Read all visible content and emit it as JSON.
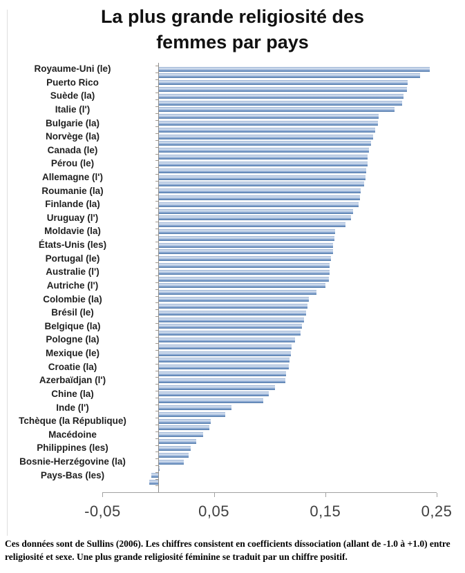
{
  "header": {
    "title": "La plus grande religiosité des femmes par pays",
    "title_lines": [
      "La plus grande religiosité des",
      "femmes par pays"
    ]
  },
  "footnote": {
    "text": "Ces données sont de Sullins (2006). Les chiffres consistent en coefficients díssociation (allant de -1.0 à +1.0) entre religiosité et sexe. Une plus grande religiosité féminine se traduit par un chiffre positif."
  },
  "chart_data": {
    "type": "bar",
    "orientation": "horizontal",
    "title": "La plus grande religiosité des femmes par pays",
    "xlabel": "",
    "ylabel": "",
    "xlim": [
      -0.05,
      0.25
    ],
    "x_tick_values": [
      -0.05,
      0.05,
      0.15,
      0.25
    ],
    "x_tick_labels": [
      "-0,05",
      "0,05",
      "0,15",
      "0,25"
    ],
    "grid": false,
    "legend": false,
    "bar_color": "#6d92c0",
    "label_interval": 2,
    "categories": [
      "Royaume-Uni (le)",
      "Puerto Rico",
      "Suède (la)",
      "Italie (l')",
      "Bulgarie (la)",
      "Norvège (la)",
      "Canada (le)",
      "Pérou (le)",
      "Allemagne (l')",
      "Roumanie (la)",
      "Finlande (la)",
      "Uruguay (l')",
      "Moldavie (la)",
      "États-Unis (les)",
      "Portugal (le)",
      "Australie (l')",
      "Autriche (l')",
      "Colombie (la)",
      "Brésil (le)",
      "Belgique (la)",
      "Pologne (la)",
      "Mexique (le)",
      "Croatie (la)",
      "Azerbaïdjan (l')",
      "Chine (la)",
      "Inde (l')",
      "Tchèque (la République)",
      "Macédoine",
      "Philippines (les)",
      "Bosnie-Herzégovine (la)",
      "Pays-Bas (les)"
    ],
    "labeled_values": [
      0.244,
      0.224,
      0.22,
      0.212,
      0.197,
      0.193,
      0.189,
      0.188,
      0.186,
      0.182,
      0.18,
      0.173,
      0.159,
      0.157,
      0.155,
      0.154,
      0.15,
      0.135,
      0.133,
      0.129,
      0.123,
      0.119,
      0.117,
      0.114,
      0.099,
      0.066,
      0.047,
      0.04,
      0.029,
      0.023,
      -0.006
    ],
    "all_bar_values": [
      0.244,
      0.235,
      0.224,
      0.223,
      0.22,
      0.219,
      0.212,
      0.198,
      0.197,
      0.195,
      0.193,
      0.191,
      0.189,
      0.188,
      0.188,
      0.187,
      0.186,
      0.185,
      0.182,
      0.181,
      0.18,
      0.175,
      0.173,
      0.168,
      0.159,
      0.158,
      0.157,
      0.157,
      0.155,
      0.154,
      0.154,
      0.153,
      0.15,
      0.142,
      0.135,
      0.134,
      0.133,
      0.131,
      0.129,
      0.128,
      0.123,
      0.12,
      0.119,
      0.118,
      0.117,
      0.115,
      0.114,
      0.105,
      0.099,
      0.094,
      0.066,
      0.06,
      0.047,
      0.046,
      0.04,
      0.034,
      0.029,
      0.027,
      0.023,
      0.001,
      -0.006,
      -0.008
    ]
  }
}
